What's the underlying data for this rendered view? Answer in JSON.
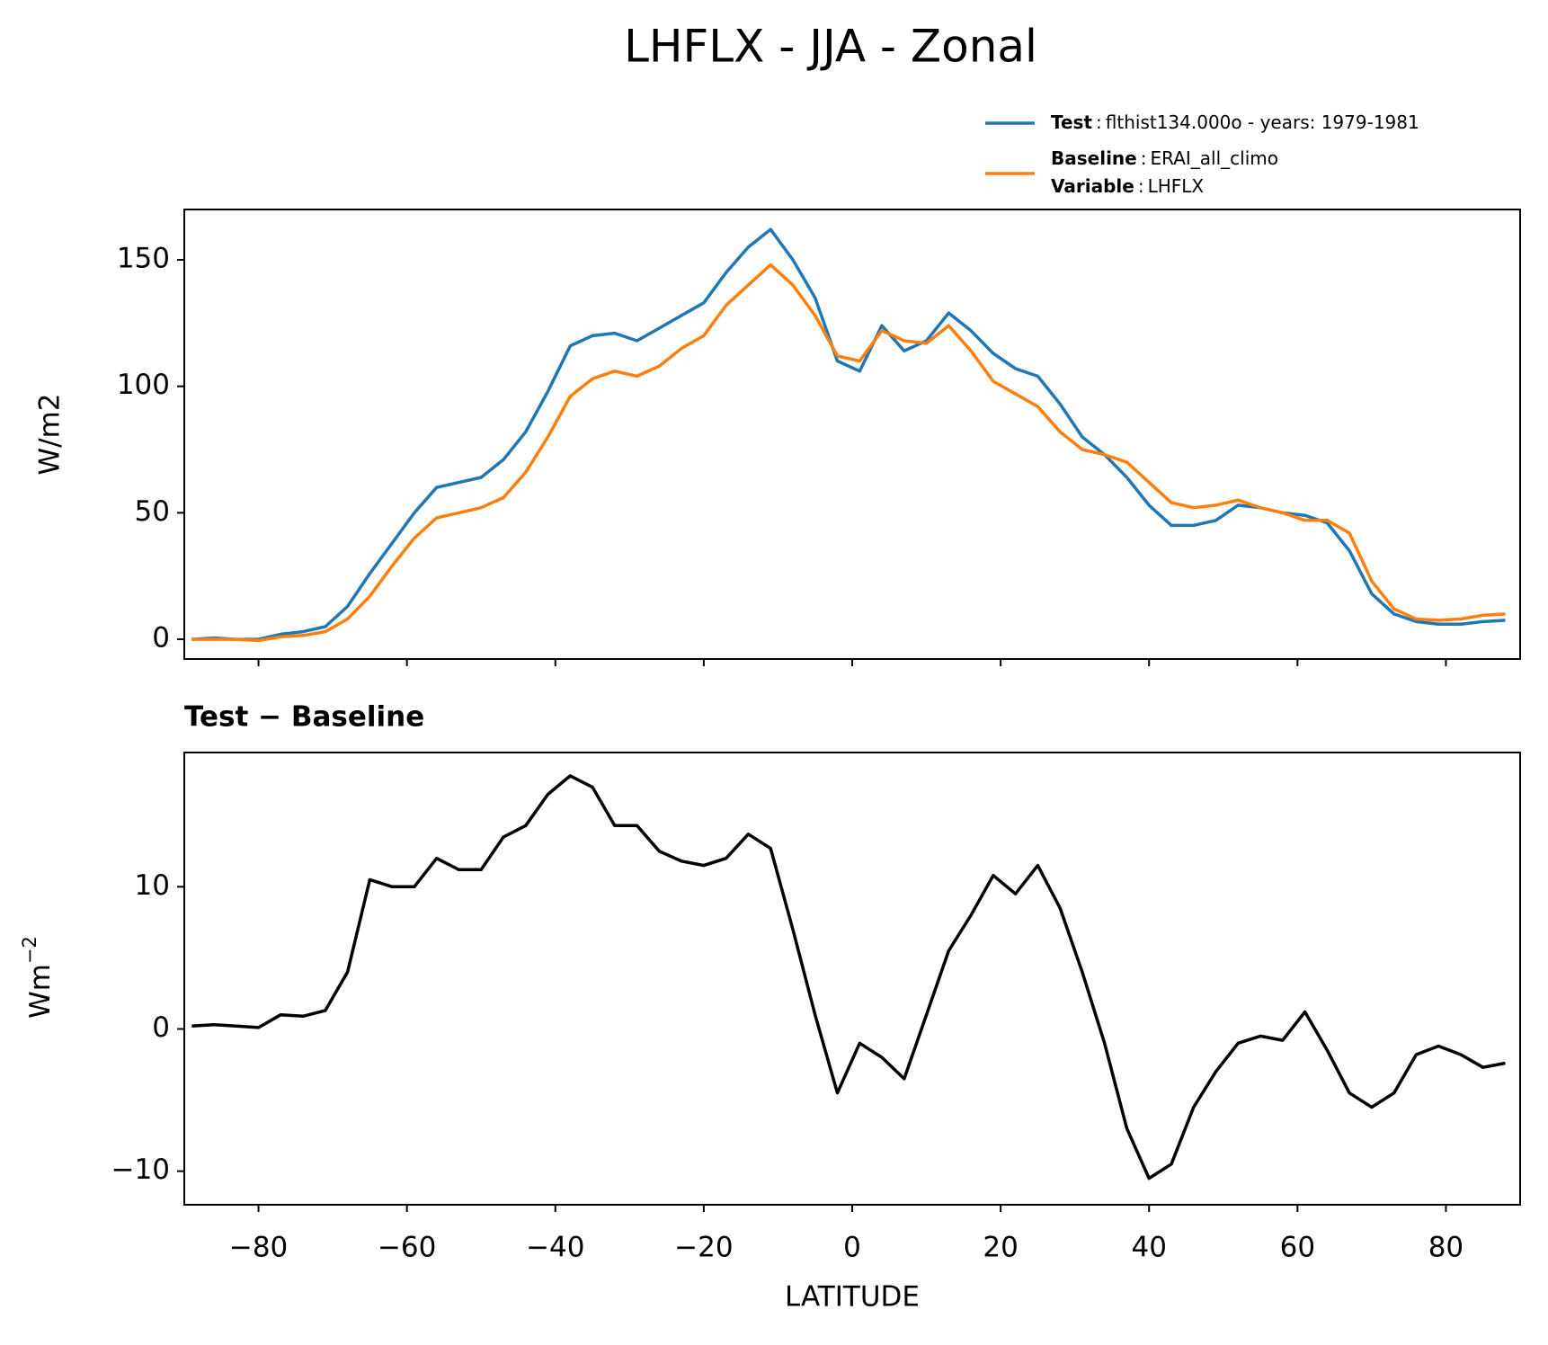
{
  "title": "LHFLX - JJA - Zonal",
  "chart_data": [
    {
      "type": "line",
      "ylabel": "W/m2",
      "x": [
        -89,
        -86,
        -83,
        -80,
        -77,
        -74,
        -71,
        -68,
        -65,
        -62,
        -59,
        -56,
        -53,
        -50,
        -47,
        -44,
        -41,
        -38,
        -35,
        -32,
        -29,
        -26,
        -23,
        -20,
        -17,
        -14,
        -11,
        -8,
        -5,
        -2,
        1,
        4,
        7,
        10,
        13,
        16,
        19,
        22,
        25,
        28,
        31,
        34,
        37,
        40,
        43,
        46,
        49,
        52,
        55,
        58,
        61,
        64,
        67,
        70,
        73,
        76,
        79,
        82,
        85,
        88
      ],
      "series": [
        {
          "name": "Test",
          "description": "flthist134.000o - years: 1979-1981",
          "color": "#1f77b4",
          "values": [
            0,
            0.5,
            0,
            0,
            2,
            3,
            5,
            13,
            26,
            38,
            50,
            60,
            62,
            64,
            71,
            82,
            98,
            116,
            120,
            121,
            118,
            123,
            128,
            133,
            145,
            155,
            162,
            150,
            135,
            110,
            106,
            124,
            114,
            118,
            129,
            122,
            113,
            107,
            104,
            93,
            80,
            73,
            64,
            53,
            45,
            45,
            47,
            53,
            52,
            50,
            49,
            46,
            35,
            18,
            10,
            7,
            6,
            6,
            7,
            7.5
          ]
        },
        {
          "name": "Baseline",
          "description": "ERAI_all_climo",
          "color": "#ff7f0e",
          "values": [
            0,
            0,
            0,
            -0.5,
            1,
            1.5,
            3,
            8,
            17,
            29,
            40,
            48,
            50,
            52,
            56,
            66,
            80,
            96,
            103,
            106,
            104,
            108,
            115,
            120,
            132,
            140,
            148,
            140,
            128,
            112,
            110,
            122,
            118,
            117,
            124,
            114,
            102,
            97,
            92,
            82,
            75,
            73,
            70,
            62,
            54,
            52,
            53,
            55,
            52,
            50,
            47,
            47,
            42,
            23,
            12,
            8,
            7.5,
            8,
            9.5,
            10
          ]
        }
      ],
      "legend_extra": {
        "name": "Variable",
        "description": "LHFLX"
      },
      "xlim": [
        -90,
        90
      ],
      "ylim": [
        -7.8,
        169.9
      ],
      "yticks": [
        0,
        50,
        100,
        150
      ]
    },
    {
      "type": "line",
      "title": "Test − Baseline",
      "xlabel": "LATITUDE",
      "ylabel": "Wm",
      "ylabel_superscript": "−2",
      "x": [
        -89,
        -86,
        -83,
        -80,
        -77,
        -74,
        -71,
        -68,
        -65,
        -62,
        -59,
        -56,
        -53,
        -50,
        -47,
        -44,
        -41,
        -38,
        -35,
        -32,
        -29,
        -26,
        -23,
        -20,
        -17,
        -14,
        -11,
        -8,
        -5,
        -2,
        1,
        4,
        7,
        10,
        13,
        16,
        19,
        22,
        25,
        28,
        31,
        34,
        37,
        40,
        43,
        46,
        49,
        52,
        55,
        58,
        61,
        64,
        67,
        70,
        73,
        76,
        79,
        82,
        85,
        88
      ],
      "series": [
        {
          "color": "#000000",
          "values": [
            0.2,
            0.3,
            0.2,
            0.1,
            1,
            0.9,
            1.3,
            4,
            10.5,
            10,
            10,
            12,
            11.2,
            11.2,
            13.5,
            14.3,
            16.5,
            17.8,
            17,
            14.3,
            14.3,
            12.5,
            11.8,
            11.5,
            12,
            13.7,
            12.7,
            7,
            1,
            -4.5,
            -1,
            -2,
            -3.5,
            1,
            5.5,
            8,
            10.8,
            9.5,
            11.5,
            8.5,
            4,
            -1,
            -7,
            -10.5,
            -9.5,
            -5.5,
            -3,
            -1,
            -0.5,
            -0.8,
            1.2,
            -1.5,
            -4.5,
            -5.5,
            -4.5,
            -1.8,
            -1.2,
            -1.8,
            -2.7,
            -2.4
          ]
        }
      ],
      "xlim": [
        -90,
        90
      ],
      "ylim": [
        -12.36,
        19.44
      ],
      "xticks": [
        {
          "value": -80,
          "label": "−80"
        },
        {
          "value": -60,
          "label": "−60"
        },
        {
          "value": -40,
          "label": "−40"
        },
        {
          "value": -20,
          "label": "−20"
        },
        0,
        20,
        40,
        60,
        80
      ],
      "yticks": [
        {
          "value": -10,
          "label": "−10"
        },
        0,
        10
      ]
    }
  ]
}
